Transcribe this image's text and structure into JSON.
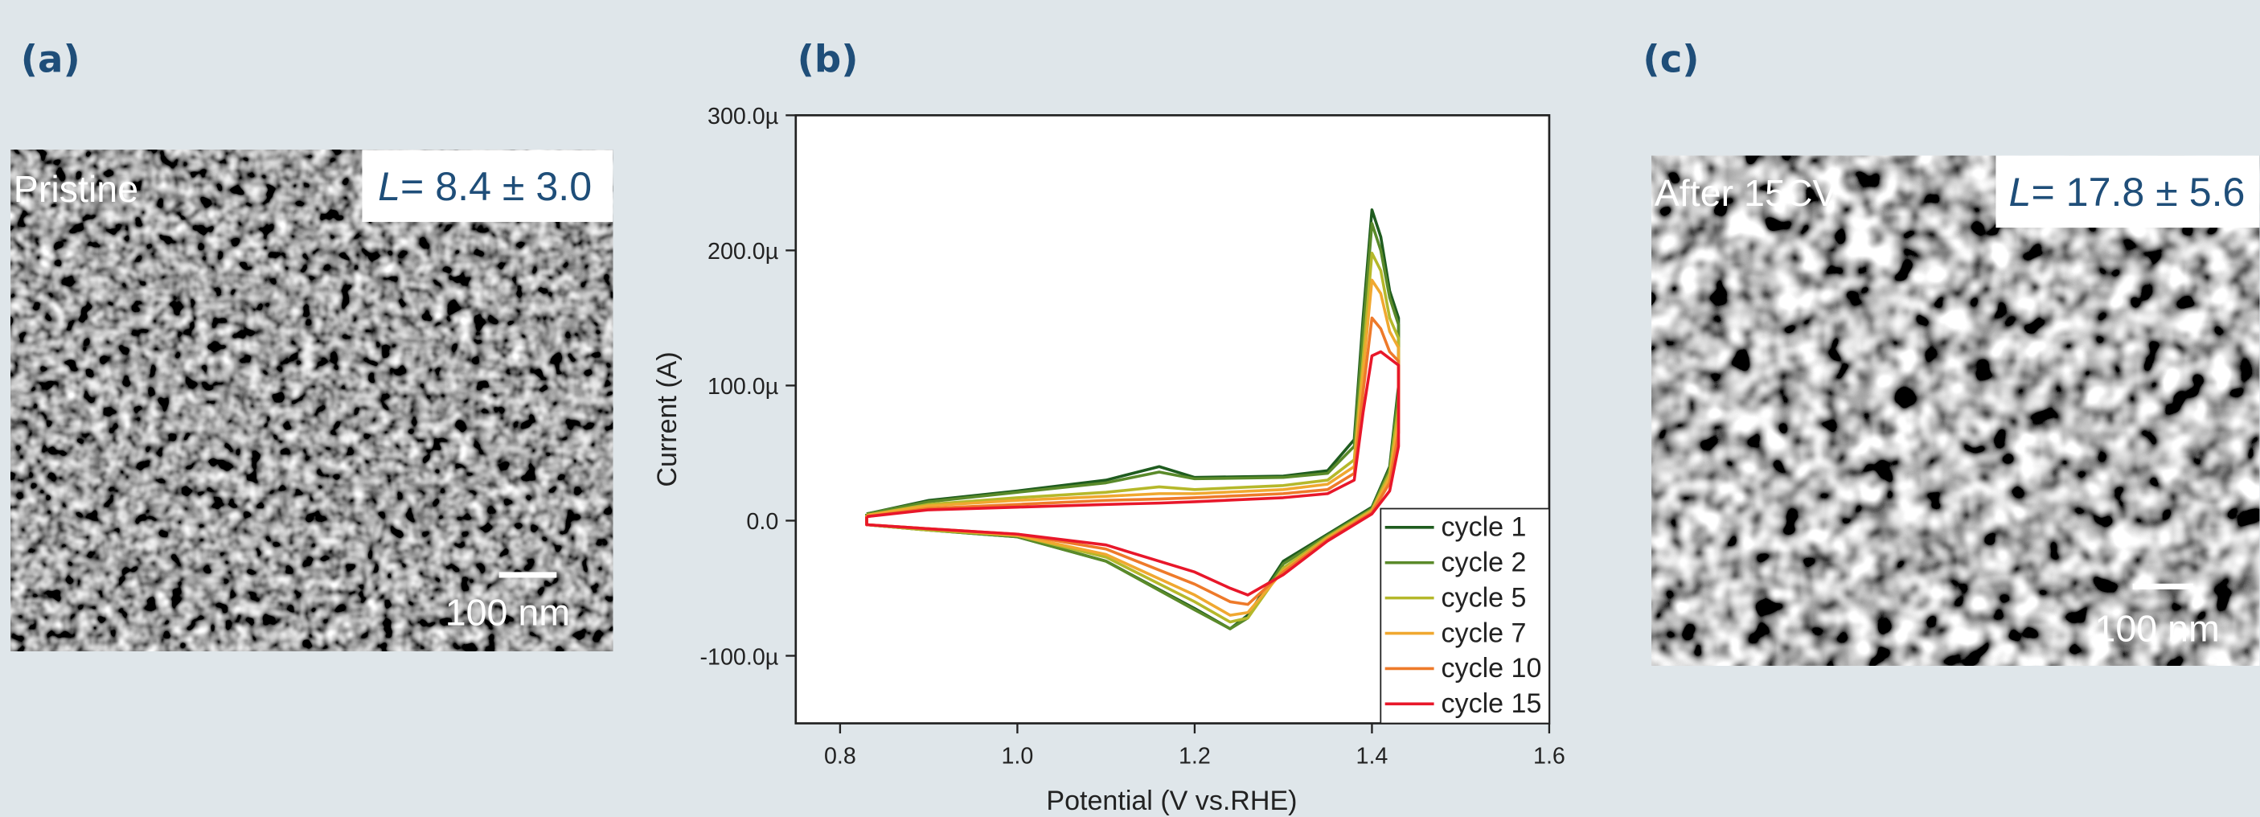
{
  "panels": {
    "a": {
      "label": "(a)",
      "caption": "Pristine",
      "size_symbol": "L",
      "size_value": "= 8.4 ± 3.0",
      "scale_bar": "100 nm"
    },
    "b": {
      "label": "(b)"
    },
    "c": {
      "label": "(c)",
      "caption": "After 15CV",
      "size_symbol": "L",
      "size_value": "= 17.8 ± 5.6",
      "scale_bar": "100 nm"
    }
  },
  "chart_data": {
    "type": "line",
    "x_label": "Potential (V vs.RHE)",
    "y_label": "Current (A)",
    "x": [
      0.83,
      0.9,
      1.0,
      1.1,
      1.16,
      1.2,
      1.3,
      1.35,
      1.38,
      1.39,
      1.4,
      1.41,
      1.42,
      1.43,
      1.43,
      1.42,
      1.4,
      1.35,
      1.3,
      1.26,
      1.24,
      1.2,
      1.1,
      1.0,
      0.9,
      0.83,
      0.83
    ],
    "series": [
      {
        "name": "cycle 1",
        "color": "#1f5c1f",
        "values": [
          5e-06,
          1.5e-05,
          2.2e-05,
          3e-05,
          4e-05,
          3.2e-05,
          3.3e-05,
          3.7e-05,
          6e-05,
          0.00015,
          0.00023,
          0.00021,
          0.00017,
          0.00015,
          0.0001,
          4e-05,
          1e-05,
          -1e-05,
          -3e-05,
          -7e-05,
          -8e-05,
          -6.5e-05,
          -3e-05,
          -1.2e-05,
          -7e-06,
          -3e-06,
          5e-06
        ]
      },
      {
        "name": "cycle 2",
        "color": "#5a8a2a",
        "values": [
          5e-06,
          1.4e-05,
          2.1e-05,
          2.8e-05,
          3.6e-05,
          3.1e-05,
          3.2e-05,
          3.5e-05,
          5.5e-05,
          0.00014,
          0.00022,
          0.0002,
          0.000165,
          0.000145,
          9.5e-05,
          3.8e-05,
          9e-06,
          -1.1e-05,
          -3.2e-05,
          -7.2e-05,
          -8e-05,
          -6.6e-05,
          -3e-05,
          -1.2e-05,
          -7e-06,
          -3e-06,
          5e-06
        ]
      },
      {
        "name": "cycle 5",
        "color": "#b5b82a",
        "values": [
          4e-06,
          1.2e-05,
          1.7e-05,
          2.1e-05,
          2.5e-05,
          2.3e-05,
          2.6e-05,
          3e-05,
          4.5e-05,
          0.00012,
          0.000198,
          0.000185,
          0.00015,
          0.000135,
          8.5e-05,
          3.5e-05,
          8e-06,
          -1.2e-05,
          -3.5e-05,
          -7.2e-05,
          -7.5e-05,
          -6e-05,
          -2.7e-05,
          -1.1e-05,
          -7e-06,
          -3e-06,
          4e-06
        ]
      },
      {
        "name": "cycle 7",
        "color": "#f0a830",
        "values": [
          4e-06,
          1.1e-05,
          1.5e-05,
          1.8e-05,
          2e-05,
          2e-05,
          2.3e-05,
          2.7e-05,
          4e-05,
          0.00011,
          0.000178,
          0.000168,
          0.00014,
          0.000128,
          7.5e-05,
          3.2e-05,
          7e-06,
          -1.3e-05,
          -3.7e-05,
          -6.8e-05,
          -7e-05,
          -5.5e-05,
          -2.5e-05,
          -1.1e-05,
          -6e-06,
          -3e-06,
          4e-06
        ]
      },
      {
        "name": "cycle 10",
        "color": "#ee7a2a",
        "values": [
          3e-06,
          9e-06,
          1.2e-05,
          1.5e-05,
          1.6e-05,
          1.7e-05,
          2e-05,
          2.3e-05,
          3.5e-05,
          9.5e-05,
          0.00015,
          0.000142,
          0.000125,
          0.000118,
          6.5e-05,
          2.8e-05,
          6e-06,
          -1.4e-05,
          -3.8e-05,
          -6.2e-05,
          -6e-05,
          -4.7e-05,
          -2.1e-05,
          -1e-05,
          -6e-06,
          -3e-06,
          3e-06
        ]
      },
      {
        "name": "cycle 15",
        "color": "#e8172a",
        "values": [
          3e-06,
          8e-06,
          1e-05,
          1.2e-05,
          1.3e-05,
          1.4e-05,
          1.7e-05,
          2e-05,
          3e-05,
          8e-05,
          0.000122,
          0.000125,
          0.00012,
          0.000115,
          5.5e-05,
          2.2e-05,
          5e-06,
          -1.5e-05,
          -4e-05,
          -5.5e-05,
          -5e-05,
          -3.8e-05,
          -1.8e-05,
          -1e-05,
          -6e-06,
          -3e-06,
          3e-06
        ]
      }
    ],
    "xlim": [
      0.75,
      1.6
    ],
    "xticks": [
      0.8,
      {
        "value": 1,
        "label": "1.0"
      },
      1.2,
      1.4,
      1.6
    ],
    "ylim": [
      -0.00015,
      0.0003
    ],
    "yticks": [
      {
        "value": -0.0001,
        "label": "-100.0µ"
      },
      {
        "value": 0,
        "label": "0.0"
      },
      {
        "value": 0.0001,
        "label": "100.0µ"
      },
      {
        "value": 0.0002,
        "label": "200.0µ"
      },
      {
        "value": 0.0003,
        "label": "300.0µ"
      }
    ],
    "legend": "lower right"
  }
}
